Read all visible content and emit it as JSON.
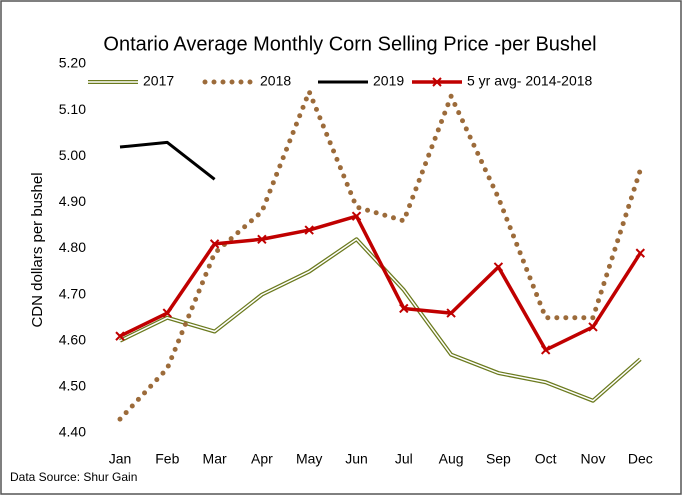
{
  "chart_data": {
    "type": "line",
    "title": "Ontario Average Monthly Corn Selling Price -per Bushel",
    "y_label": "CDN dollars per bushel",
    "source": "Data Source: Shur Gain",
    "categories": [
      "Jan",
      "Feb",
      "Mar",
      "Apr",
      "May",
      "Jun",
      "Jul",
      "Aug",
      "Sep",
      "Oct",
      "Nov",
      "Dec"
    ],
    "series": [
      {
        "name": "2017",
        "color": "#6b7a1e",
        "style": "double",
        "values": [
          4.6,
          4.65,
          4.62,
          4.7,
          4.75,
          4.82,
          4.71,
          4.57,
          4.53,
          4.51,
          4.47,
          4.56
        ]
      },
      {
        "name": "2018",
        "color": "#9c6b3a",
        "style": "dotted",
        "values": [
          4.43,
          4.54,
          4.79,
          4.88,
          5.14,
          4.89,
          4.86,
          5.13,
          4.91,
          4.65,
          4.65,
          4.97
        ]
      },
      {
        "name": "2019",
        "color": "#000000",
        "style": "solid",
        "values": [
          5.02,
          5.03,
          4.95,
          null,
          null,
          null,
          null,
          null,
          null,
          null,
          null,
          null
        ]
      },
      {
        "name": "5 yr avg- 2014-2018",
        "color": "#c00000",
        "style": "marker",
        "values": [
          4.61,
          4.66,
          4.81,
          4.82,
          4.84,
          4.87,
          4.67,
          4.66,
          4.76,
          4.58,
          4.63,
          4.79
        ]
      }
    ],
    "ylim": [
      4.4,
      5.2
    ],
    "yticks": [
      {
        "value": 4.4,
        "label": "4.40"
      },
      {
        "value": 4.5,
        "label": "4.50"
      },
      {
        "value": 4.6,
        "label": "4.60"
      },
      {
        "value": 4.7,
        "label": "4.70"
      },
      {
        "value": 4.8,
        "label": "4.80"
      },
      {
        "value": 4.9,
        "label": "4.90"
      },
      {
        "value": 5.0,
        "label": "5.00"
      },
      {
        "value": 5.1,
        "label": "5.10"
      },
      {
        "value": 5.2,
        "label": "5.20"
      }
    ],
    "grid": false,
    "legend": "top"
  }
}
